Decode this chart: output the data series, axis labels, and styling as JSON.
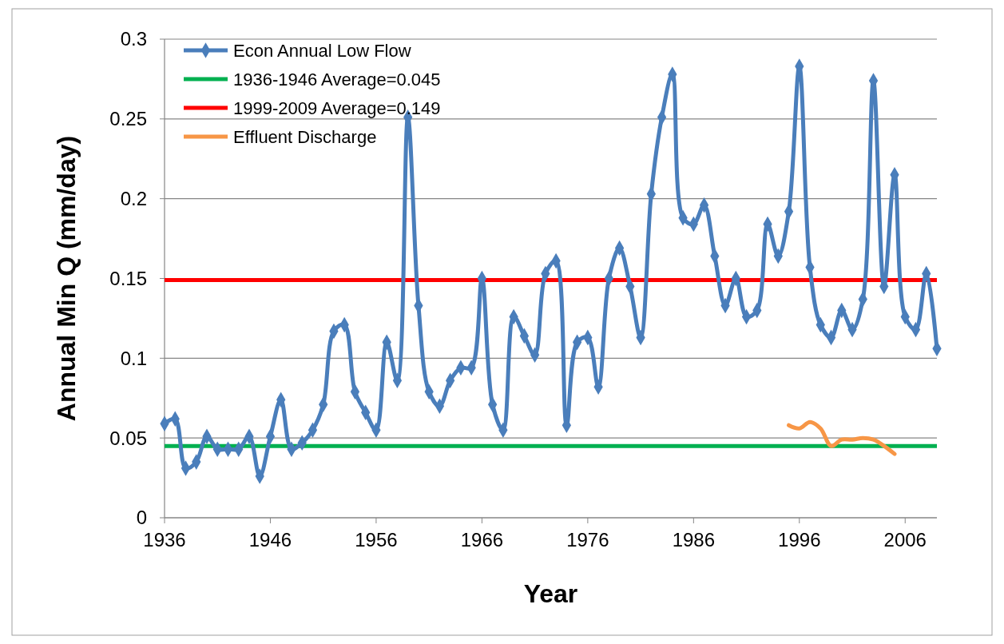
{
  "chart_data": {
    "type": "line",
    "xlabel": "Year",
    "ylabel": "Annual Min Q (mm/day)",
    "xlim": [
      1936,
      2009
    ],
    "xticks": [
      1936,
      1946,
      1956,
      1966,
      1976,
      1986,
      1996,
      2006
    ],
    "ylim": [
      0,
      0.3
    ],
    "yticks": [
      0,
      0.05,
      0.1,
      0.15,
      0.2,
      0.25,
      0.3
    ],
    "grid": "y",
    "legend": "top left",
    "marker": "diamond",
    "line_style": "solid",
    "series": [
      {
        "name": "Econ Annual Low Flow",
        "color": "#4a7ebb",
        "x": [
          1936,
          1937,
          1938,
          1939,
          1940,
          1941,
          1942,
          1943,
          1944,
          1945,
          1946,
          1947,
          1948,
          1949,
          1950,
          1951,
          1952,
          1953,
          1954,
          1955,
          1956,
          1957,
          1958,
          1959,
          1960,
          1961,
          1962,
          1963,
          1964,
          1965,
          1966,
          1967,
          1968,
          1969,
          1970,
          1971,
          1972,
          1973,
          1974,
          1975,
          1976,
          1977,
          1978,
          1979,
          1980,
          1981,
          1982,
          1983,
          1984,
          1985,
          1986,
          1987,
          1988,
          1989,
          1990,
          1991,
          1992,
          1993,
          1994,
          1995,
          1996,
          1997,
          1998,
          1999,
          2000,
          2001,
          2002,
          2003,
          2004,
          2005,
          2006,
          2007,
          2008,
          2009
        ],
        "values": [
          0.059,
          0.062,
          0.031,
          0.035,
          0.051,
          0.043,
          0.043,
          0.043,
          0.051,
          0.026,
          0.051,
          0.074,
          0.043,
          0.047,
          0.055,
          0.071,
          0.117,
          0.121,
          0.079,
          0.066,
          0.055,
          0.11,
          0.086,
          0.251,
          0.133,
          0.079,
          0.07,
          0.086,
          0.094,
          0.094,
          0.15,
          0.071,
          0.055,
          0.126,
          0.114,
          0.102,
          0.153,
          0.161,
          0.058,
          0.11,
          0.113,
          0.082,
          0.15,
          0.169,
          0.145,
          0.113,
          0.203,
          0.251,
          0.278,
          0.188,
          0.184,
          0.196,
          0.164,
          0.133,
          0.15,
          0.126,
          0.13,
          0.184,
          0.164,
          0.192,
          0.283,
          0.157,
          0.121,
          0.113,
          0.13,
          0.118,
          0.137,
          0.274,
          0.145,
          0.215,
          0.126,
          0.118,
          0.153,
          0.106
        ]
      },
      {
        "name": "Effluent Discharge",
        "color": "#f79646",
        "marker": "none",
        "x": [
          1995,
          1996,
          1997,
          1998,
          1999,
          2000,
          2001,
          2002,
          2003,
          2004,
          2005
        ],
        "values": [
          0.058,
          0.056,
          0.06,
          0.056,
          0.045,
          0.049,
          0.049,
          0.05,
          0.049,
          0.045,
          0.04
        ]
      }
    ],
    "ref_lines": [
      {
        "axis": "y",
        "value": 0.045,
        "label": "1936-1946 Average=0.045",
        "color": "#00b050"
      },
      {
        "axis": "y",
        "value": 0.149,
        "label": "1999-2009 Average=0.149",
        "color": "#ff0000"
      }
    ]
  }
}
